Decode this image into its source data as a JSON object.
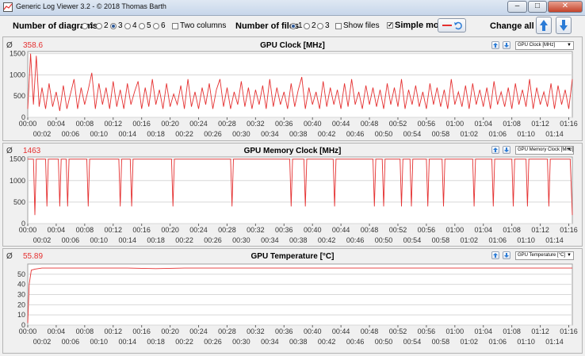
{
  "window": {
    "title": "Generic Log Viewer 3.2 - © 2018 Thomas Barth",
    "minimize": "–",
    "maximize": "□",
    "close": "✕"
  },
  "toolbar": {
    "diagrams_label": "Number of diagrams",
    "diagram_options": [
      "1",
      "2",
      "3",
      "4",
      "5",
      "6"
    ],
    "diagram_selected": "3",
    "two_columns_label": "Two columns",
    "files_label": "Number of files",
    "file_options": [
      "1",
      "2",
      "3"
    ],
    "file_selected": "1",
    "show_files_label": "Show files",
    "simple_mode_label": "Simple mode",
    "simple_mode_checked": true,
    "change_all_label": "Change all",
    "line_color": "#e53030"
  },
  "time_labels": {
    "top": [
      "00:00",
      "00:04",
      "00:08",
      "00:12",
      "00:16",
      "00:20",
      "00:24",
      "00:28",
      "00:32",
      "00:36",
      "00:40",
      "00:44",
      "00:48",
      "00:52",
      "00:56",
      "01:00",
      "01:04",
      "01:08",
      "01:12",
      "01:16"
    ],
    "bottom": [
      "00:02",
      "00:06",
      "00:10",
      "00:14",
      "00:18",
      "00:22",
      "00:26",
      "00:30",
      "00:34",
      "00:38",
      "00:42",
      "00:46",
      "00:50",
      "00:54",
      "00:58",
      "01:02",
      "01:06",
      "01:10",
      "01:14"
    ]
  },
  "panels": [
    {
      "avg_symbol": "Ø",
      "avg_value": "358.6",
      "title": "GPU Clock [MHz]",
      "selector": "GPU Clock [MHz]"
    },
    {
      "avg_symbol": "Ø",
      "avg_value": "1463",
      "title": "GPU Memory Clock [MHz]",
      "selector": "GPU Memory Clock [MHz]"
    },
    {
      "avg_symbol": "Ø",
      "avg_value": "55.89",
      "title": "GPU Temperature [°C]",
      "selector": "GPU Temperature [°C]"
    }
  ],
  "chart_data": [
    {
      "type": "line",
      "title": "GPU Clock [MHz]",
      "x_unit": "minutes",
      "xlim": [
        0,
        76.5
      ],
      "ylim": [
        0,
        1550
      ],
      "yticks": [
        0,
        500,
        1000,
        1500
      ],
      "grid": true,
      "series": [
        {
          "x": [
            0,
            0.4,
            0.8,
            1.2,
            1.6,
            2.0,
            2.5,
            3.0,
            3.5,
            4.0,
            4.5,
            5.0,
            5.5,
            6.0,
            6.5,
            7.0,
            7.5,
            8.0,
            8.5,
            9.0,
            9.5,
            10.0,
            10.5,
            11.0,
            11.5,
            12.0,
            12.5,
            13.0,
            13.5,
            14.0,
            14.5,
            15.0,
            15.5,
            16.0,
            16.5,
            17.0,
            17.5,
            18.0,
            18.5,
            19.0,
            19.5,
            20.0,
            20.5,
            21.0,
            21.5,
            22.0,
            22.5,
            23.0,
            23.5,
            24.0,
            24.5,
            25.0,
            25.5,
            26.0,
            26.5,
            27.0,
            27.5,
            28.0,
            28.5,
            29.0,
            29.5,
            30.0,
            30.5,
            31.0,
            31.5,
            32.0,
            32.5,
            33.0,
            33.5,
            34.0,
            34.5,
            35.0,
            35.5,
            36.0,
            36.5,
            37.0,
            37.5,
            38.0,
            38.5,
            39.0,
            39.5,
            40.0,
            40.5,
            41.0,
            41.5,
            42.0,
            42.5,
            43.0,
            43.5,
            44.0,
            44.5,
            45.0,
            45.5,
            46.0,
            46.5,
            47.0,
            47.5,
            48.0,
            48.5,
            49.0,
            49.5,
            50.0,
            50.5,
            51.0,
            51.5,
            52.0,
            52.5,
            53.0,
            53.5,
            54.0,
            54.5,
            55.0,
            55.5,
            56.0,
            56.5,
            57.0,
            57.5,
            58.0,
            58.5,
            59.0,
            59.5,
            60.0,
            60.5,
            61.0,
            61.5,
            62.0,
            62.5,
            63.0,
            63.5,
            64.0,
            64.5,
            65.0,
            65.5,
            66.0,
            66.5,
            67.0,
            67.5,
            68.0,
            68.5,
            69.0,
            69.5,
            70.0,
            70.5,
            71.0,
            71.5,
            72.0,
            72.5,
            73.0,
            73.5,
            74.0,
            74.5,
            75.0,
            75.5,
            76.0,
            76.5
          ],
          "y": [
            200,
            1500,
            300,
            1450,
            250,
            700,
            200,
            800,
            250,
            600,
            150,
            750,
            200,
            550,
            900,
            200,
            700,
            300,
            650,
            1050,
            200,
            800,
            300,
            700,
            200,
            850,
            250,
            650,
            200,
            800,
            300,
            600,
            850,
            200,
            700,
            250,
            900,
            300,
            650,
            200,
            800,
            250,
            550,
            300,
            750,
            200,
            900,
            250,
            600,
            200,
            700,
            300,
            800,
            200,
            650,
            900,
            250,
            700,
            200,
            600,
            300,
            850,
            250,
            700,
            200,
            650,
            300,
            750,
            200,
            900,
            250,
            700,
            300,
            600,
            200,
            800,
            250,
            650,
            950,
            200,
            700,
            300,
            600,
            200,
            850,
            250,
            700,
            300,
            650,
            200,
            800,
            250,
            900,
            300,
            600,
            200,
            750,
            300,
            700,
            250,
            650,
            200,
            800,
            300,
            700,
            250,
            900,
            200,
            650,
            300,
            750,
            250,
            600,
            200,
            800,
            300,
            700,
            250,
            650,
            200,
            900,
            300,
            600,
            250,
            750,
            200,
            800,
            300,
            650,
            250,
            700,
            200,
            850,
            300,
            600,
            250,
            700,
            200,
            800,
            300,
            650,
            250,
            900,
            200,
            700,
            300,
            600,
            250,
            800,
            200,
            750,
            300,
            650,
            200,
            900
          ]
        }
      ]
    },
    {
      "type": "line",
      "title": "GPU Memory Clock [MHz]",
      "x_unit": "minutes",
      "xlim": [
        0,
        76.5
      ],
      "ylim": [
        0,
        1550
      ],
      "yticks": [
        0,
        500,
        1000,
        1500
      ],
      "grid": true,
      "series": [
        {
          "x": [
            0,
            0.8,
            1.0,
            1.2,
            2.0,
            2.5,
            2.7,
            2.9,
            4.0,
            4.3,
            4.5,
            4.7,
            5.4,
            5.6,
            5.8,
            8.3,
            8.5,
            8.7,
            12.8,
            13.0,
            13.2,
            14.4,
            14.6,
            14.8,
            20.2,
            20.4,
            20.6,
            28.5,
            28.7,
            28.9,
            36.8,
            37.0,
            37.2,
            38.8,
            39.0,
            39.2,
            42.9,
            43.1,
            43.3,
            48.5,
            48.7,
            48.9,
            49.8,
            50.0,
            50.2,
            52.3,
            52.5,
            52.7,
            53.7,
            53.9,
            54.1,
            56.0,
            56.2,
            56.4,
            58.2,
            58.4,
            58.6,
            62.5,
            62.7,
            62.9,
            65.2,
            65.4,
            65.6,
            68.0,
            68.2,
            68.4,
            70.0,
            70.2,
            70.4,
            73.0,
            73.2,
            73.4,
            76.2,
            76.5
          ],
          "y": [
            1500,
            1500,
            200,
            1500,
            1500,
            1500,
            400,
            1500,
            1500,
            1500,
            400,
            1500,
            1500,
            400,
            1500,
            1500,
            400,
            1500,
            1500,
            400,
            1500,
            1500,
            400,
            1500,
            1500,
            400,
            1500,
            1500,
            400,
            1500,
            1500,
            400,
            1500,
            1500,
            400,
            1500,
            1500,
            400,
            1500,
            1500,
            400,
            1500,
            1500,
            400,
            1500,
            1500,
            400,
            1500,
            1500,
            400,
            1500,
            1500,
            400,
            1500,
            1500,
            400,
            1500,
            1500,
            400,
            1500,
            1500,
            400,
            1500,
            1500,
            400,
            1500,
            1500,
            400,
            1500,
            1500,
            400,
            1500,
            1500,
            200
          ]
        }
      ]
    },
    {
      "type": "line",
      "title": "GPU Temperature [°C]",
      "x_unit": "minutes",
      "xlim": [
        0,
        76.5
      ],
      "ylim": [
        0,
        60
      ],
      "yticks": [
        0,
        10,
        20,
        30,
        40,
        50
      ],
      "grid": true,
      "series": [
        {
          "x": [
            0,
            0.2,
            0.5,
            1,
            2,
            4,
            6,
            8,
            10,
            14,
            18,
            22,
            26,
            30,
            34,
            38,
            42,
            46,
            50,
            54,
            58,
            62,
            66,
            70,
            74,
            76.5
          ],
          "y": [
            2,
            40,
            54,
            55,
            56,
            56,
            56,
            56,
            56,
            56,
            55.5,
            56,
            56,
            56,
            56,
            56,
            56,
            56,
            56,
            56,
            56,
            56,
            56,
            56,
            56,
            56
          ]
        }
      ]
    }
  ]
}
